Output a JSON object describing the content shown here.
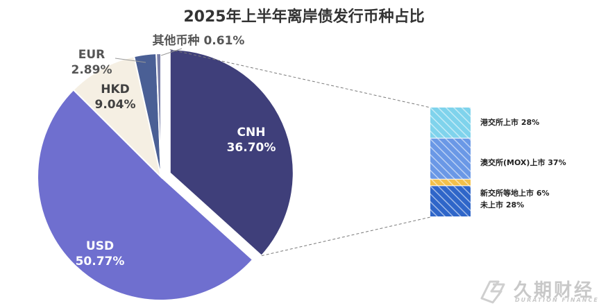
{
  "chart_data": {
    "type": "pie",
    "title": "2025年上半年离岸债发行币种占比",
    "slices": [
      {
        "name": "CNH",
        "value": 36.7,
        "label": "36.70%",
        "color": "#3f3f7a"
      },
      {
        "name": "USD",
        "value": 50.77,
        "label": "50.77%",
        "color": "#6f6fcf"
      },
      {
        "name": "HKD",
        "value": 9.04,
        "label": "9.04%",
        "color": "#f5efe3"
      },
      {
        "name": "EUR",
        "value": 2.89,
        "label": "2.89%",
        "color": "#4a5f95"
      },
      {
        "name": "其他币种",
        "value": 0.61,
        "label": "0.61%",
        "color": "#7a7fa8"
      }
    ],
    "exploded_slice": "CNH",
    "breakdown": {
      "of": "CNH",
      "type": "stacked-bar",
      "segments": [
        {
          "label": "港交所上市 28%",
          "value": 28,
          "color": "#7fd3ec"
        },
        {
          "label": "澳交所(MOX)上市 37%",
          "value": 37,
          "color": "#6a98e6"
        },
        {
          "label": "新交所等地上市 6%",
          "value": 6,
          "color": "#f2c04a"
        },
        {
          "label": "未上市 28%",
          "value": 28,
          "color": "#2f66c9"
        }
      ]
    }
  },
  "watermark": {
    "main": "久期财经",
    "sub": "DURATION FINANCE"
  }
}
